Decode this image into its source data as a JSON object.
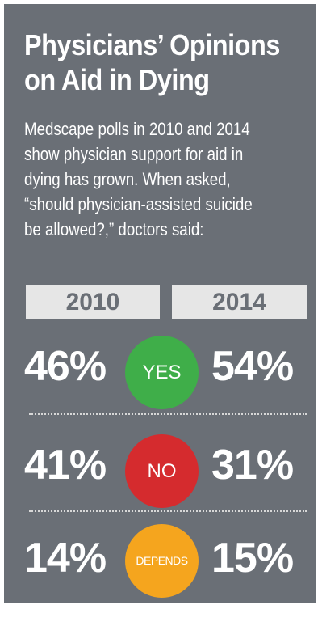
{
  "title_lines": [
    "Physicians’ Opinions",
    "on Aid in Dying"
  ],
  "subtitle_lines": [
    "Medscape polls in 2010 and 2014",
    "show physician support for aid in",
    "dying has grown.  When asked,",
    "“should physician-assisted suicide",
    "be allowed?,” doctors said:"
  ],
  "colors": {
    "background": "#6a6f76",
    "year_box": "#e6e6e6",
    "yes": "#3fae49",
    "no": "#d52b2e",
    "depends": "#f5a51e"
  },
  "chart_data": {
    "type": "table",
    "title": "Physicians’ Opinions on Aid in Dying",
    "columns": [
      "2010",
      "2014"
    ],
    "rows": [
      {
        "label": "YES",
        "values": [
          "46%",
          "54%"
        ]
      },
      {
        "label": "NO",
        "values": [
          "41%",
          "31%"
        ]
      },
      {
        "label": "DEPENDS",
        "values": [
          "14%",
          "15%"
        ]
      }
    ]
  }
}
